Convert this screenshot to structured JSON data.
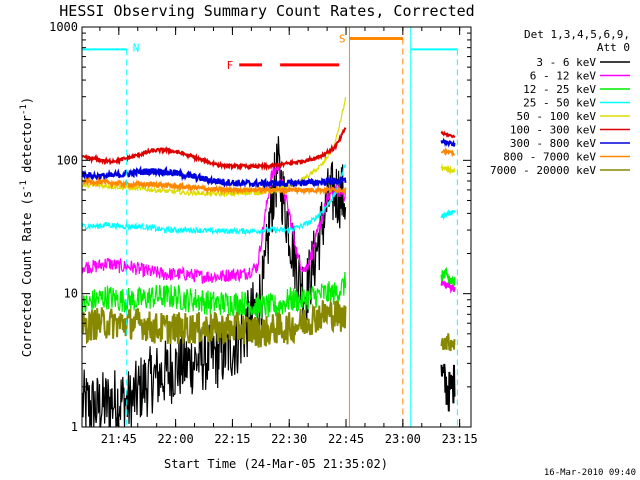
{
  "colors": {
    "c3_6": "#000000",
    "c6_12": "#ff00ff",
    "c12_25": "#00ee00",
    "c25_50": "#00ffff",
    "c50_100": "#dddd00",
    "c100_300": "#dd0000",
    "c300_800": "#0000dd",
    "c800_7000": "#ff8800",
    "c7000_20000": "#888800",
    "night": "#00ffff",
    "saa": "#ff8800",
    "flare": "#ff0000"
  },
  "footer": {
    "date_stamp": "16-Mar-2010 09:40"
  },
  "chart_data": {
    "type": "line",
    "title": "HESSI Observing Summary Count Rates, Corrected",
    "xlabel": "Start Time (24-Mar-05 21:35:02)",
    "ylabel_main": "Corrected Count Rate (s",
    "ylabel_sup1": "-1",
    "ylabel_mid": " detector",
    "ylabel_sup2": "-1",
    "ylabel_end": ")",
    "y_scale": "log",
    "xlim": [
      21.588,
      23.3
    ],
    "ylim": [
      1,
      1000
    ],
    "x_ticks": [
      {
        "value": 21.75,
        "label": "21:45"
      },
      {
        "value": 22.0,
        "label": "22:00"
      },
      {
        "value": 22.25,
        "label": "22:15"
      },
      {
        "value": 22.5,
        "label": "22:30"
      },
      {
        "value": 22.75,
        "label": "22:45"
      },
      {
        "value": 23.0,
        "label": "23:00"
      },
      {
        "value": 23.25,
        "label": "23:15"
      }
    ],
    "y_ticks": [
      {
        "value": 1,
        "label": "1"
      },
      {
        "value": 10,
        "label": "10"
      },
      {
        "value": 100,
        "label": "100"
      },
      {
        "value": 1000,
        "label": "1000"
      }
    ],
    "legend": {
      "position": "right",
      "header1": "Det 1,3,4,5,6,9,",
      "header2": "Att 0"
    },
    "series": [
      {
        "name": "3 - 6 keV",
        "color_key": "c3_6",
        "x": [
          21.59,
          21.65,
          21.7,
          21.75,
          21.8,
          21.85,
          21.9,
          21.95,
          22.0,
          22.05,
          22.1,
          22.15,
          22.2,
          22.25,
          22.28,
          22.32,
          22.36,
          22.39,
          22.42,
          22.45,
          22.5,
          22.54,
          22.57,
          22.6,
          22.64,
          22.67,
          22.7,
          22.73,
          22.75
        ],
        "y": [
          1.5,
          1.4,
          1.5,
          1.6,
          1.5,
          2.0,
          2.3,
          2.5,
          2.8,
          3.0,
          3.2,
          3.4,
          3.5,
          4.0,
          4.5,
          6,
          8,
          12,
          45,
          90,
          30,
          14,
          10,
          15,
          30,
          50,
          58,
          55,
          50
        ]
      },
      {
        "name": "6 - 12 keV",
        "color_key": "c6_12",
        "x": [
          21.59,
          21.65,
          21.7,
          21.75,
          21.8,
          21.85,
          21.9,
          21.95,
          22.0,
          22.05,
          22.1,
          22.15,
          22.2,
          22.25,
          22.3,
          22.36,
          22.39,
          22.42,
          22.45,
          22.5,
          22.54,
          22.57,
          22.6,
          22.64,
          22.67,
          22.7,
          22.73,
          22.75
        ],
        "y": [
          16,
          16,
          17,
          16,
          16,
          15,
          14.5,
          14,
          14,
          14,
          13.5,
          13.5,
          13.5,
          14,
          14,
          16,
          35,
          75,
          90,
          40,
          18,
          15,
          20,
          35,
          52,
          60,
          58,
          55
        ]
      },
      {
        "name": "12 - 25 keV",
        "color_key": "c12_25",
        "x": [
          21.59,
          21.65,
          21.7,
          21.75,
          21.8,
          21.85,
          21.9,
          21.95,
          22.0,
          22.05,
          22.1,
          22.15,
          22.2,
          22.25,
          22.3,
          22.35,
          22.4,
          22.45,
          22.5,
          22.55,
          22.6,
          22.65,
          22.7,
          22.73,
          22.75
        ],
        "y": [
          8,
          9,
          9.5,
          9,
          9,
          9,
          9.5,
          9.5,
          9.5,
          9,
          9,
          8.5,
          8.5,
          8.5,
          8.5,
          8,
          8,
          8,
          9,
          9,
          9.5,
          10,
          10,
          11,
          12
        ]
      },
      {
        "name": "25 - 50 keV",
        "color_key": "c25_50",
        "x": [
          21.59,
          21.65,
          21.7,
          21.75,
          21.8,
          21.85,
          21.9,
          21.95,
          22.0,
          22.05,
          22.1,
          22.15,
          22.2,
          22.25,
          22.3,
          22.35,
          22.4,
          22.45,
          22.5,
          22.55,
          22.6,
          22.65,
          22.7,
          22.73,
          22.75
        ],
        "y": [
          32,
          32,
          33,
          32,
          32,
          32,
          31,
          30,
          30,
          30,
          30,
          29.5,
          29.5,
          29.5,
          29.5,
          29.5,
          30,
          30,
          30,
          32,
          35,
          42,
          55,
          75,
          100
        ]
      },
      {
        "name": "50 - 100 keV",
        "color_key": "c50_100",
        "x": [
          21.59,
          21.65,
          21.7,
          21.75,
          21.8,
          21.85,
          21.9,
          21.95,
          22.0,
          22.05,
          22.1,
          22.15,
          22.2,
          22.25,
          22.3,
          22.35,
          22.4,
          22.45,
          22.5,
          22.55,
          22.6,
          22.65,
          22.7,
          22.72,
          22.75
        ],
        "y": [
          65,
          65,
          64,
          63,
          62,
          61,
          60,
          59,
          58,
          57,
          57,
          56,
          56,
          56,
          57,
          57,
          58,
          60,
          65,
          70,
          80,
          95,
          130,
          180,
          300
        ]
      },
      {
        "name": "100 - 300 keV",
        "color_key": "c100_300",
        "x": [
          21.59,
          21.65,
          21.7,
          21.75,
          21.8,
          21.85,
          21.9,
          21.95,
          22.0,
          22.05,
          22.1,
          22.15,
          22.2,
          22.25,
          22.3,
          22.35,
          22.4,
          22.45,
          22.5,
          22.55,
          22.6,
          22.65,
          22.7,
          22.72,
          22.75
        ],
        "y": [
          105,
          102,
          98,
          100,
          105,
          112,
          118,
          120,
          116,
          110,
          103,
          96,
          92,
          90,
          90,
          90,
          90,
          92,
          95,
          98,
          102,
          110,
          125,
          140,
          180
        ]
      },
      {
        "name": "300 - 800 keV",
        "color_key": "c300_800",
        "x": [
          21.59,
          21.65,
          21.7,
          21.75,
          21.8,
          21.85,
          21.9,
          21.95,
          22.0,
          22.05,
          22.1,
          22.15,
          22.2,
          22.25,
          22.3,
          22.35,
          22.4,
          22.45,
          22.5,
          22.55,
          22.6,
          22.65,
          22.7,
          22.75
        ],
        "y": [
          78,
          76,
          76,
          78,
          80,
          82,
          83,
          82,
          80,
          77,
          74,
          71,
          69,
          68,
          67,
          67,
          67,
          67,
          67,
          68,
          68,
          69,
          70,
          70
        ]
      },
      {
        "name": "800 - 7000 keV",
        "color_key": "c800_7000",
        "x": [
          21.59,
          21.65,
          21.7,
          21.75,
          21.8,
          21.85,
          21.9,
          21.95,
          22.0,
          22.05,
          22.1,
          22.15,
          22.2,
          22.25,
          22.3,
          22.35,
          22.4,
          22.45,
          22.5,
          22.55,
          22.6,
          22.65,
          22.7,
          22.75
        ],
        "y": [
          70,
          69,
          68,
          67,
          66,
          66,
          66,
          65,
          64,
          63,
          62,
          61,
          60,
          60,
          60,
          60,
          60,
          60,
          60,
          60,
          60,
          60,
          60,
          60
        ]
      },
      {
        "name": "7000 - 20000 keV",
        "color_key": "c7000_20000",
        "x": [
          21.59,
          21.65,
          21.7,
          21.75,
          21.8,
          21.85,
          21.9,
          21.95,
          22.0,
          22.05,
          22.1,
          22.15,
          22.2,
          22.25,
          22.3,
          22.35,
          22.4,
          22.45,
          22.5,
          22.55,
          22.6,
          22.65,
          22.7,
          22.75
        ],
        "y": [
          5.5,
          6,
          6,
          6,
          6,
          6,
          5.5,
          5.5,
          5.5,
          5.5,
          5.5,
          5.5,
          5.5,
          5.5,
          5.5,
          5.2,
          5.2,
          5.5,
          5.5,
          6,
          6.5,
          7,
          7,
          6.5
        ]
      }
    ],
    "late_segment": {
      "x": [
        23.17,
        23.2,
        23.23
      ],
      "values": {
        "c3_6": [
          2.5,
          1.8,
          2.2
        ],
        "c6_12": [
          12,
          11.5,
          11
        ],
        "c12_25": [
          14,
          13,
          12
        ],
        "c25_50": [
          38,
          40,
          42
        ],
        "c50_100": [
          88,
          85,
          82
        ],
        "c100_300": [
          160,
          155,
          150
        ],
        "c300_800": [
          140,
          135,
          130
        ],
        "c800_7000": [
          118,
          115,
          112
        ],
        "c7000_20000": [
          4.5,
          4.3,
          4.4
        ]
      }
    },
    "annotations": {
      "night_label": "N",
      "saa_label": "S",
      "flare_label": "F",
      "night_intervals": [
        [
          21.58,
          21.785
        ],
        [
          23.035,
          23.24
        ]
      ],
      "saa_intervals": [
        [
          22.765,
          23.0
        ]
      ],
      "flare_intervals": [
        [
          22.28,
          22.38
        ],
        [
          22.46,
          22.72
        ]
      ],
      "night_y": 680,
      "saa_y": 820,
      "flare_y": 520
    }
  }
}
